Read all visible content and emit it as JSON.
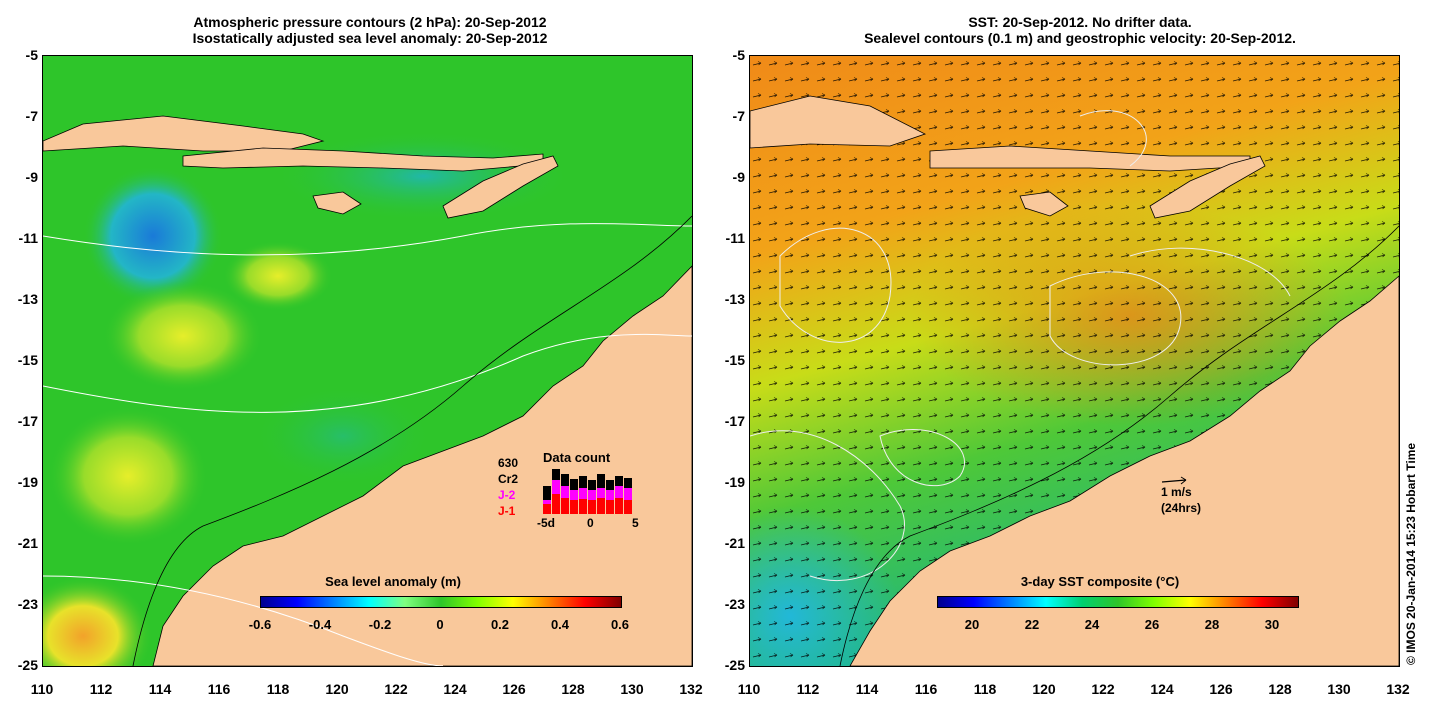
{
  "left_panel": {
    "title_line1": "Atmospheric pressure contours (2 hPa): 20-Sep-2012",
    "title_line2": "Isostatically adjusted sea level anomaly: 20-Sep-2012",
    "colorbar": {
      "title": "Sea level anomaly (m)",
      "ticks": [
        "-0.6",
        "-0.4",
        "-0.2",
        "0",
        "0.2",
        "0.4",
        "0.6"
      ],
      "range": [
        -0.6,
        0.6
      ],
      "colormap": "jet"
    },
    "data_count": {
      "title": "Data count",
      "total": "630",
      "labels": [
        "Cr2",
        "J-2",
        "J-1"
      ],
      "label_colors": [
        "#000000",
        "#ff00ff",
        "#ff0000"
      ],
      "x_ticks": [
        "-5d",
        "0",
        "5"
      ]
    }
  },
  "right_panel": {
    "title_line1": "SST: 20-Sep-2012. No drifter data.",
    "title_line2": "Sealevel contours (0.1 m) and geostrophic velocity: 20-Sep-2012.",
    "colorbar": {
      "title": "3-day SST composite (°C)",
      "ticks": [
        "20",
        "22",
        "24",
        "26",
        "28",
        "30"
      ],
      "colormap": "jet"
    },
    "scale_arrow": {
      "label1": "1 m/s",
      "label2": "(24hrs)"
    }
  },
  "axes": {
    "y_ticks": [
      "-5",
      "-7",
      "-9",
      "-11",
      "-13",
      "-15",
      "-17",
      "-19",
      "-21",
      "-23",
      "-25"
    ],
    "x_ticks": [
      "110",
      "112",
      "114",
      "116",
      "118",
      "120",
      "122",
      "124",
      "126",
      "128",
      "130",
      "132"
    ],
    "lon_range": [
      110,
      132
    ],
    "lat_range": [
      -25,
      -5
    ]
  },
  "credit": "© IMOS 20-Jan-2014 15:23 Hobart Time",
  "colors": {
    "land": "#f9c89b",
    "ocean_left": "#2ec52a",
    "ocean_right_warm": "#f29a18",
    "ocean_right_mid": "#b9dc1a",
    "ocean_right_cool": "#19c35a"
  }
}
